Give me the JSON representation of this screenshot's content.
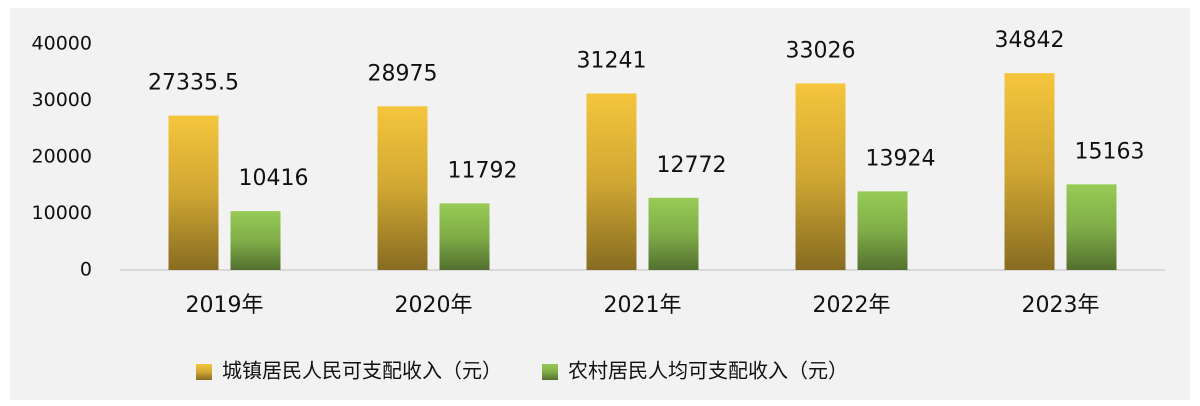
{
  "chart_data": {
    "type": "bar",
    "categories": [
      "2019年",
      "2020年",
      "2021年",
      "2022年",
      "2023年"
    ],
    "series": [
      {
        "name": "城镇居民人民可支配收入（元）",
        "color": "#f5c53c",
        "values": [
          27335.5,
          28975,
          31241,
          33026,
          34842
        ]
      },
      {
        "name": "农村居民人均可支配收入（元）",
        "color": "#97cb55",
        "values": [
          10416,
          11792,
          12772,
          13924,
          15163
        ]
      }
    ],
    "ylim": [
      0,
      40000
    ],
    "yticks": [
      0,
      10000,
      20000,
      30000,
      40000
    ],
    "grid": false,
    "legend": "bottom"
  }
}
